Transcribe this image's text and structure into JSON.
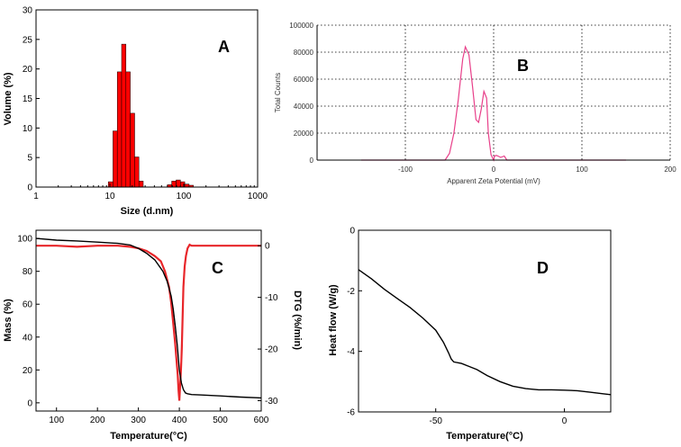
{
  "chart_data": [
    {
      "panel": "A",
      "type": "bar",
      "xlabel": "Size (d.nm)",
      "ylabel": "Volume (%)",
      "xscale": "log",
      "xlim": [
        1,
        1000
      ],
      "ylim": [
        0,
        30
      ],
      "xticks": [
        "1",
        "10",
        "100",
        "1000"
      ],
      "yticks": [
        "0",
        "5",
        "10",
        "15",
        "20",
        "25",
        "30"
      ],
      "bins": [
        {
          "x0": 9.5,
          "x1": 11.0,
          "value": 0.9
        },
        {
          "x0": 11.0,
          "x1": 12.6,
          "value": 9.5
        },
        {
          "x0": 12.6,
          "x1": 14.4,
          "value": 19.5
        },
        {
          "x0": 14.4,
          "x1": 16.5,
          "value": 24.2
        },
        {
          "x0": 16.5,
          "x1": 18.9,
          "value": 19.5
        },
        {
          "x0": 18.9,
          "x1": 21.6,
          "value": 12.5
        },
        {
          "x0": 21.6,
          "x1": 24.7,
          "value": 5.1
        },
        {
          "x0": 24.7,
          "x1": 28.3,
          "value": 1.0
        },
        {
          "x0": 60.0,
          "x1": 68.7,
          "value": 0.4
        },
        {
          "x0": 68.7,
          "x1": 78.7,
          "value": 1.0
        },
        {
          "x0": 78.7,
          "x1": 90.1,
          "value": 1.2
        },
        {
          "x0": 90.1,
          "x1": 103.0,
          "value": 0.9
        },
        {
          "x0": 103.0,
          "x1": 118.0,
          "value": 0.5
        },
        {
          "x0": 118.0,
          "x1": 135.0,
          "value": 0.3
        }
      ],
      "bar_color": "#ff0000"
    },
    {
      "panel": "B",
      "type": "line",
      "xlabel": "Apparent Zeta Potential (mV)",
      "ylabel": "Total Counts",
      "xlim": [
        -200,
        200
      ],
      "ylim": [
        0,
        100000
      ],
      "xticks": [
        "-100",
        "0",
        "100",
        "200"
      ],
      "yticks": [
        "0",
        "20000",
        "40000",
        "60000",
        "80000",
        "100000"
      ],
      "grid": true,
      "line_color": "#e8408a",
      "x": [
        -150,
        -55,
        -50,
        -45,
        -40,
        -35,
        -32,
        -28,
        -24,
        -20,
        -17,
        -14,
        -11,
        -8,
        -6,
        -3,
        0,
        1,
        3,
        5,
        8,
        12,
        15,
        20,
        150
      ],
      "y": [
        0,
        0,
        5000,
        20000,
        45000,
        75000,
        84000,
        78000,
        55000,
        30000,
        28000,
        38000,
        51000,
        46000,
        20000,
        4000,
        0,
        3000,
        3500,
        3000,
        2000,
        3000,
        0,
        0,
        0
      ]
    },
    {
      "panel": "C",
      "type": "line",
      "xlabel": "Temperature(°C)",
      "ylabel": "Mass (%)",
      "y2label": "DTG (%/min)",
      "xlim": [
        50,
        600
      ],
      "ylim": [
        -5,
        105
      ],
      "y2lim": [
        -32,
        3
      ],
      "xticks": [
        "100",
        "200",
        "300",
        "400",
        "500",
        "600"
      ],
      "yticks": [
        "0",
        "20",
        "40",
        "60",
        "80",
        "100"
      ],
      "y2ticks": [
        "0",
        "-10",
        "-20",
        "-30"
      ],
      "series": [
        {
          "name": "Mass",
          "axis": "left",
          "color": "#000000",
          "x": [
            50,
            100,
            150,
            200,
            250,
            280,
            300,
            320,
            340,
            360,
            370,
            380,
            385,
            390,
            395,
            400,
            405,
            410,
            415,
            420,
            430,
            450,
            500,
            550,
            600
          ],
          "y": [
            100,
            99,
            98.5,
            97.8,
            97,
            96,
            94,
            91,
            87,
            80,
            74,
            65,
            57,
            47,
            35,
            20,
            12,
            8,
            6,
            5.5,
            5,
            4.8,
            4.2,
            3.5,
            3
          ]
        },
        {
          "name": "DTG",
          "axis": "right",
          "color": "#e8262a",
          "x": [
            50,
            100,
            150,
            200,
            250,
            280,
            300,
            320,
            340,
            355,
            365,
            375,
            380,
            385,
            390,
            393,
            396,
            398,
            400,
            402,
            404,
            406,
            408,
            410,
            413,
            416,
            420,
            425,
            430,
            450,
            500,
            550,
            600
          ],
          "y": [
            0,
            0,
            -0.2,
            0,
            0,
            -0.2,
            -0.5,
            -1,
            -2,
            -3,
            -5,
            -8,
            -11,
            -15,
            -19,
            -22,
            -25,
            -28,
            -30,
            -27,
            -24,
            -20,
            -14,
            -8,
            -4,
            -2,
            -0.5,
            0.2,
            0,
            0,
            0,
            0,
            0
          ]
        }
      ]
    },
    {
      "panel": "D",
      "type": "line",
      "xlabel": "Temperature(°C)",
      "ylabel": "Heat flow (W/g)",
      "xlim": [
        -80,
        18
      ],
      "ylim": [
        -6,
        0
      ],
      "xticks": [
        "-50",
        "0"
      ],
      "yticks": [
        "0",
        "-2",
        "-4",
        "-6"
      ],
      "line_color": "#000000",
      "x": [
        -80,
        -75,
        -70,
        -65,
        -60,
        -55,
        -50,
        -47,
        -45,
        -44,
        -43,
        -40,
        -37,
        -34,
        -30,
        -25,
        -20,
        -15,
        -10,
        -5,
        0,
        5,
        10,
        15,
        18
      ],
      "y": [
        -1.3,
        -1.6,
        -1.95,
        -2.25,
        -2.55,
        -2.9,
        -3.3,
        -3.7,
        -4.05,
        -4.25,
        -4.35,
        -4.4,
        -4.5,
        -4.6,
        -4.8,
        -5.0,
        -5.15,
        -5.23,
        -5.27,
        -5.27,
        -5.28,
        -5.3,
        -5.35,
        -5.4,
        -5.43
      ]
    }
  ]
}
